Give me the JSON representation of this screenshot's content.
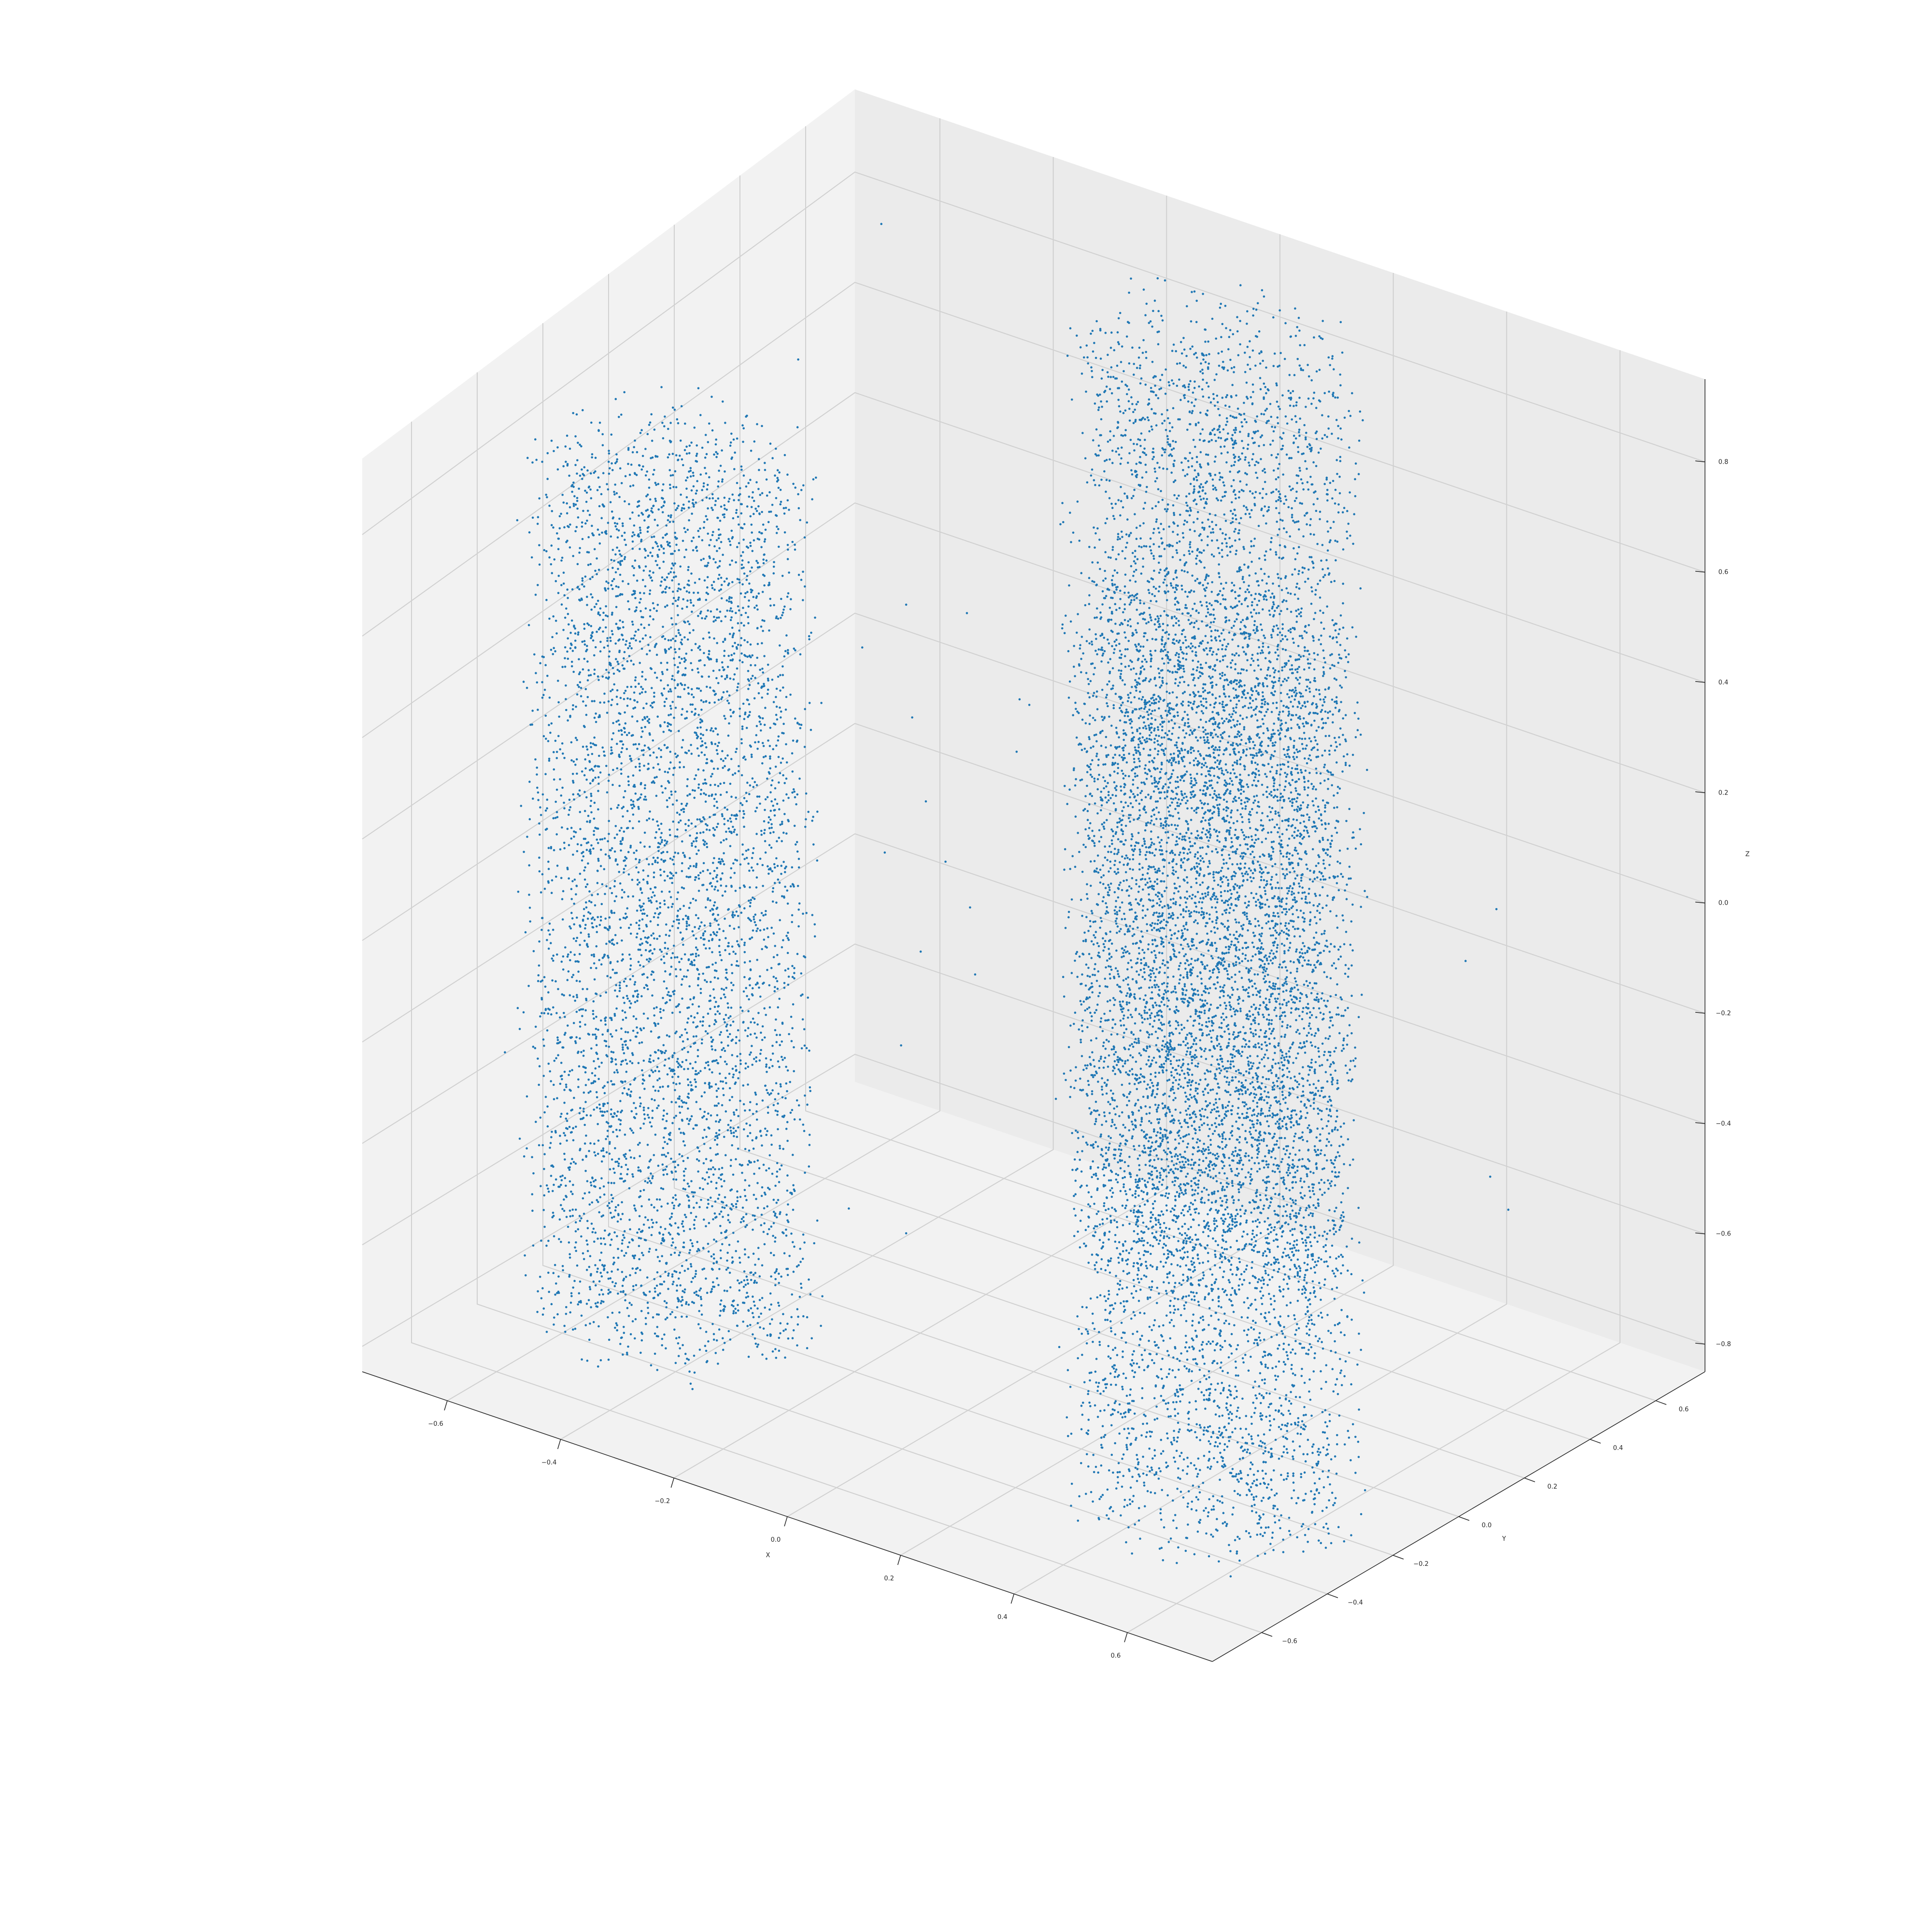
{
  "chart_data": {
    "type": "scatter",
    "projection": "3d",
    "title": "",
    "xlabel": "X",
    "ylabel": "Y",
    "zlabel": "Z",
    "xlim": [
      -0.75,
      0.75
    ],
    "ylim": [
      -0.75,
      0.75
    ],
    "zlim": [
      -0.85,
      0.95
    ],
    "xticks": [
      -0.6,
      -0.4,
      -0.2,
      0.0,
      0.2,
      0.4,
      0.6
    ],
    "yticks": [
      -0.6,
      -0.4,
      -0.2,
      0.0,
      0.2,
      0.4,
      0.6
    ],
    "zticks": [
      -0.8,
      -0.6,
      -0.4,
      -0.2,
      0.0,
      0.2,
      0.4,
      0.6,
      0.8
    ],
    "xtick_labels": [
      "−0.6",
      "−0.4",
      "−0.2",
      "0.0",
      "0.2",
      "0.4",
      "0.6"
    ],
    "ytick_labels": [
      "−0.6",
      "−0.4",
      "−0.2",
      "0.0",
      "0.2",
      "0.4",
      "0.6"
    ],
    "ztick_labels": [
      "−0.8",
      "−0.6",
      "−0.4",
      "−0.2",
      "0.0",
      "0.2",
      "0.4",
      "0.6",
      "0.8"
    ],
    "grid": true,
    "point_color": "#1f77b4",
    "pane_colors": {
      "left": "#f2f2f2",
      "back": "#ebebeb",
      "floor": "#f2f2f2"
    },
    "shape": "three cylinder lobes (tripod) joined at center",
    "lobes": [
      {
        "name": "",
        "center": [
          0.0,
          0.55
        ],
        "radius": 0.22,
        "z_range": [
          -0.85,
          0.85
        ]
      },
      {
        "name": "",
        "center": [
          -0.48,
          -0.28
        ],
        "radius": 0.22,
        "z_range": [
          -0.85,
          0.85
        ]
      },
      {
        "name": "",
        "center": [
          0.48,
          -0.28
        ],
        "radius": 0.22,
        "z_range": [
          -0.85,
          0.85
        ]
      }
    ]
  }
}
